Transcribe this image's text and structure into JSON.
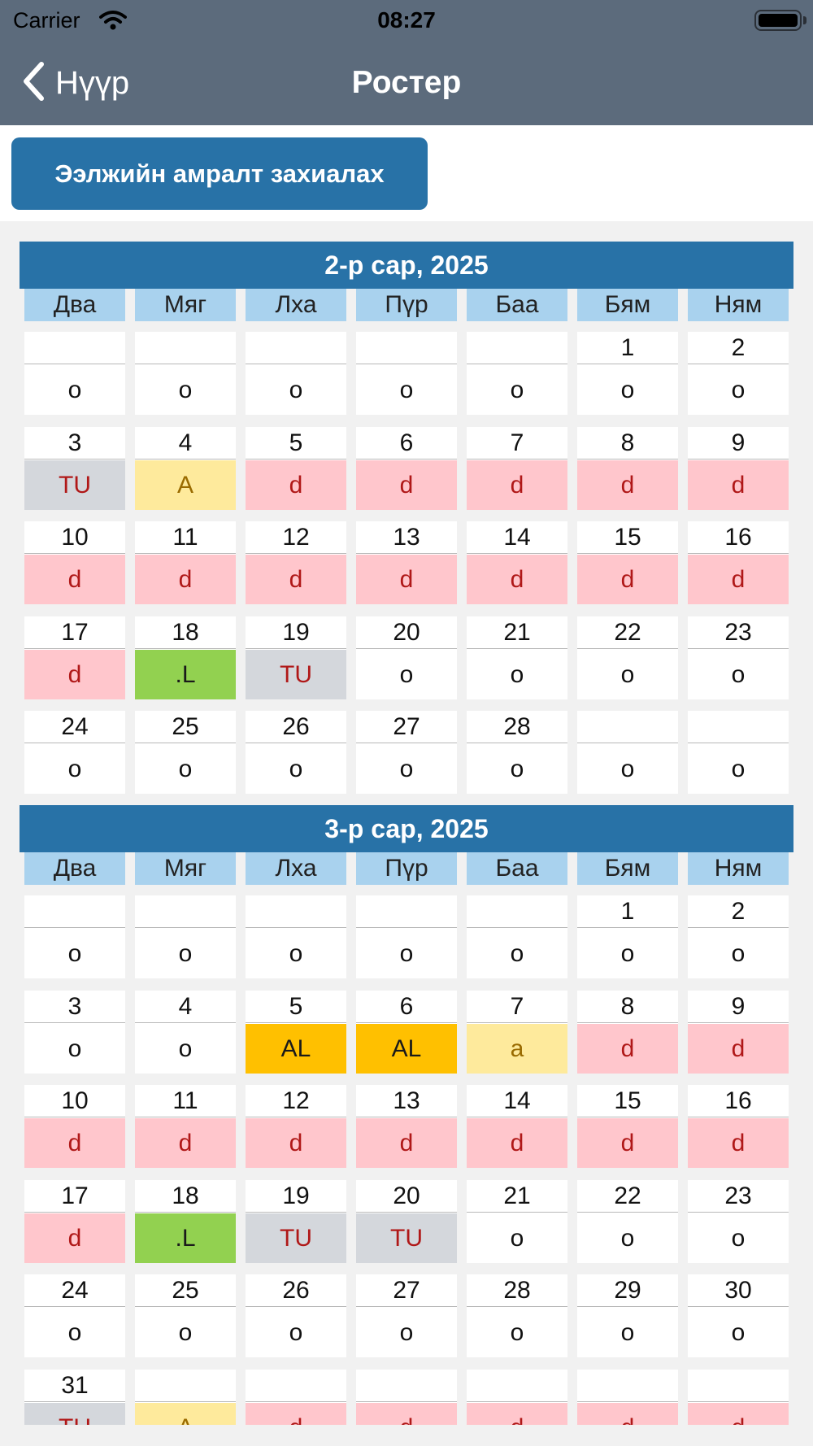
{
  "status_bar": {
    "carrier": "Carrier",
    "time": "08:27"
  },
  "nav": {
    "back_label": "Нүүр",
    "title": "Ростер"
  },
  "toolbar": {
    "button_label": "Ээлжийн амралт захиалах"
  },
  "shift_colors": {
    "o": {
      "bg": "#ffffff",
      "fg": "#111111"
    },
    "d": {
      "bg": "#ffc6cc",
      "fg": "#b01818"
    },
    "TU": {
      "bg": "#d4d7dc",
      "fg": "#b01818"
    },
    "A": {
      "bg": "#feea9c",
      "fg": "#9a6b00"
    },
    "a": {
      "bg": "#feea9c",
      "fg": "#9a6b00"
    },
    ".L": {
      "bg": "#92d150",
      "fg": "#1a1a1a"
    },
    "AL": {
      "bg": "#ffc000",
      "fg": "#1a1a1a"
    }
  },
  "weekdays": [
    "Два",
    "Мяг",
    "Лха",
    "Пүр",
    "Баа",
    "Бям",
    "Ням"
  ],
  "months": [
    {
      "title": "2-р сар, 2025",
      "weeks": [
        [
          [
            "",
            "o"
          ],
          [
            "",
            "o"
          ],
          [
            "",
            "o"
          ],
          [
            "",
            "o"
          ],
          [
            "",
            "o"
          ],
          [
            "1",
            "o"
          ],
          [
            "2",
            "o"
          ]
        ],
        [
          [
            "3",
            "TU"
          ],
          [
            "4",
            "A"
          ],
          [
            "5",
            "d"
          ],
          [
            "6",
            "d"
          ],
          [
            "7",
            "d"
          ],
          [
            "8",
            "d"
          ],
          [
            "9",
            "d"
          ]
        ],
        [
          [
            "10",
            "d"
          ],
          [
            "11",
            "d"
          ],
          [
            "12",
            "d"
          ],
          [
            "13",
            "d"
          ],
          [
            "14",
            "d"
          ],
          [
            "15",
            "d"
          ],
          [
            "16",
            "d"
          ]
        ],
        [
          [
            "17",
            "d"
          ],
          [
            "18",
            ".L"
          ],
          [
            "19",
            "TU"
          ],
          [
            "20",
            "o"
          ],
          [
            "21",
            "o"
          ],
          [
            "22",
            "o"
          ],
          [
            "23",
            "o"
          ]
        ],
        [
          [
            "24",
            "o"
          ],
          [
            "25",
            "o"
          ],
          [
            "26",
            "o"
          ],
          [
            "27",
            "o"
          ],
          [
            "28",
            "o"
          ],
          [
            "",
            "o"
          ],
          [
            "",
            "o"
          ]
        ]
      ]
    },
    {
      "title": "3-р сар, 2025",
      "weeks": [
        [
          [
            "",
            "o"
          ],
          [
            "",
            "o"
          ],
          [
            "",
            "o"
          ],
          [
            "",
            "o"
          ],
          [
            "",
            "o"
          ],
          [
            "1",
            "o"
          ],
          [
            "2",
            "o"
          ]
        ],
        [
          [
            "3",
            "o"
          ],
          [
            "4",
            "o"
          ],
          [
            "5",
            "AL"
          ],
          [
            "6",
            "AL"
          ],
          [
            "7",
            "a"
          ],
          [
            "8",
            "d"
          ],
          [
            "9",
            "d"
          ]
        ],
        [
          [
            "10",
            "d"
          ],
          [
            "11",
            "d"
          ],
          [
            "12",
            "d"
          ],
          [
            "13",
            "d"
          ],
          [
            "14",
            "d"
          ],
          [
            "15",
            "d"
          ],
          [
            "16",
            "d"
          ]
        ],
        [
          [
            "17",
            "d"
          ],
          [
            "18",
            ".L"
          ],
          [
            "19",
            "TU"
          ],
          [
            "20",
            "TU"
          ],
          [
            "21",
            "o"
          ],
          [
            "22",
            "o"
          ],
          [
            "23",
            "o"
          ]
        ],
        [
          [
            "24",
            "o"
          ],
          [
            "25",
            "o"
          ],
          [
            "26",
            "o"
          ],
          [
            "27",
            "o"
          ],
          [
            "28",
            "o"
          ],
          [
            "29",
            "o"
          ],
          [
            "30",
            "o"
          ]
        ],
        [
          [
            "31",
            "TU"
          ],
          [
            "",
            "A"
          ],
          [
            "",
            "d"
          ],
          [
            "",
            "d"
          ],
          [
            "",
            "d"
          ],
          [
            "",
            "d"
          ],
          [
            "",
            "d"
          ]
        ]
      ]
    }
  ]
}
